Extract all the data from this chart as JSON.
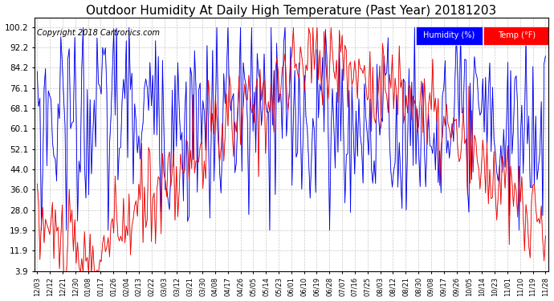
{
  "title": "Outdoor Humidity At Daily High Temperature (Past Year) 20181203",
  "copyright": "Copyright 2018 Cartronics.com",
  "legend_labels": [
    "Humidity (%)",
    "Temp (°F)"
  ],
  "legend_colors": [
    "blue",
    "red"
  ],
  "yticks": [
    3.9,
    11.9,
    19.9,
    28.0,
    36.0,
    44.0,
    52.1,
    60.1,
    68.1,
    76.1,
    84.2,
    92.2,
    100.2
  ],
  "xtick_labels": [
    "12/03",
    "12/12",
    "12/21",
    "12/30",
    "01/08",
    "01/17",
    "01/26",
    "02/04",
    "02/13",
    "02/22",
    "03/03",
    "03/12",
    "03/21",
    "03/30",
    "04/08",
    "04/17",
    "04/26",
    "05/05",
    "05/14",
    "05/23",
    "06/01",
    "06/10",
    "06/19",
    "06/28",
    "07/07",
    "07/16",
    "07/25",
    "08/03",
    "08/12",
    "08/21",
    "08/30",
    "09/08",
    "09/17",
    "09/26",
    "10/05",
    "10/14",
    "10/23",
    "11/01",
    "11/10",
    "11/19",
    "11/28"
  ],
  "background_color": "#ffffff",
  "grid_color": "#bbbbbb",
  "title_fontsize": 11,
  "copyright_fontsize": 7,
  "humidity_color": "blue",
  "temp_color": "red",
  "black_line_color": "black",
  "ylim_min": 3.9,
  "ylim_max": 104,
  "n_days": 366
}
